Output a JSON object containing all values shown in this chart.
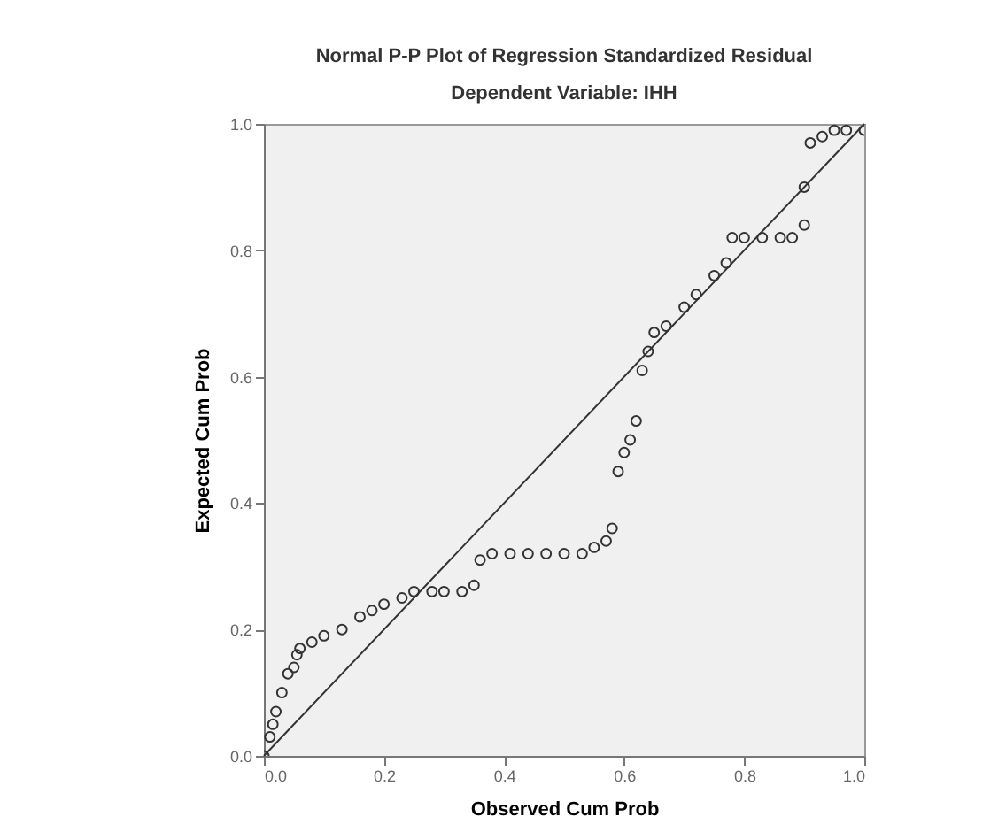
{
  "chart_data": {
    "type": "scatter",
    "title": "Normal P-P Plot of Regression Standardized Residual",
    "subtitle": "Dependent Variable: IHH",
    "xlabel": "Observed Cum Prob",
    "ylabel": "Expected Cum Prob",
    "xlim": [
      0,
      1
    ],
    "ylim": [
      0,
      1
    ],
    "xticks": [
      {
        "value": 0,
        "label": "0.0"
      },
      {
        "value": 0.2,
        "label": "0.2"
      },
      {
        "value": 0.4,
        "label": "0.4"
      },
      {
        "value": 0.6,
        "label": "0.6"
      },
      {
        "value": 0.8,
        "label": "0.8"
      },
      {
        "value": 1,
        "label": "1.0"
      }
    ],
    "yticks": [
      {
        "value": 0,
        "label": "0.0"
      },
      {
        "value": 0.2,
        "label": "0.2"
      },
      {
        "value": 0.4,
        "label": "0.4"
      },
      {
        "value": 0.6,
        "label": "0.6"
      },
      {
        "value": 0.8,
        "label": "0.8"
      },
      {
        "value": 1,
        "label": "1.0"
      }
    ],
    "grid": false,
    "series": [
      {
        "marker": "circle",
        "color": "#333333",
        "x": [
          0,
          0.01,
          0.015,
          0.02,
          0.03,
          0.04,
          0.05,
          0.055,
          0.06,
          0.08,
          0.1,
          0.13,
          0.16,
          0.18,
          0.2,
          0.23,
          0.25,
          0.28,
          0.3,
          0.33,
          0.35,
          0.36,
          0.38,
          0.41,
          0.44,
          0.47,
          0.5,
          0.53,
          0.55,
          0.57,
          0.58,
          0.59,
          0.6,
          0.61,
          0.62,
          0.63,
          0.64,
          0.65,
          0.67,
          0.7,
          0.72,
          0.75,
          0.77,
          0.78,
          0.8,
          0.83,
          0.86,
          0.88,
          0.9,
          0.9,
          0.91,
          0.93,
          0.95,
          0.97,
          1.0
        ],
        "values": [
          0,
          0.03,
          0.05,
          0.07,
          0.1,
          0.13,
          0.14,
          0.16,
          0.17,
          0.18,
          0.19,
          0.2,
          0.22,
          0.23,
          0.24,
          0.25,
          0.26,
          0.26,
          0.26,
          0.26,
          0.27,
          0.31,
          0.32,
          0.32,
          0.32,
          0.32,
          0.32,
          0.32,
          0.33,
          0.34,
          0.36,
          0.45,
          0.48,
          0.5,
          0.53,
          0.61,
          0.64,
          0.67,
          0.68,
          0.71,
          0.73,
          0.76,
          0.78,
          0.82,
          0.82,
          0.82,
          0.82,
          0.82,
          0.84,
          0.9,
          0.97,
          0.98,
          0.99,
          0.99,
          0.99
        ]
      },
      {
        "type": "line",
        "marker": "none",
        "color": "#333333",
        "x": [
          0,
          1
        ],
        "values": [
          0,
          1
        ]
      }
    ]
  }
}
